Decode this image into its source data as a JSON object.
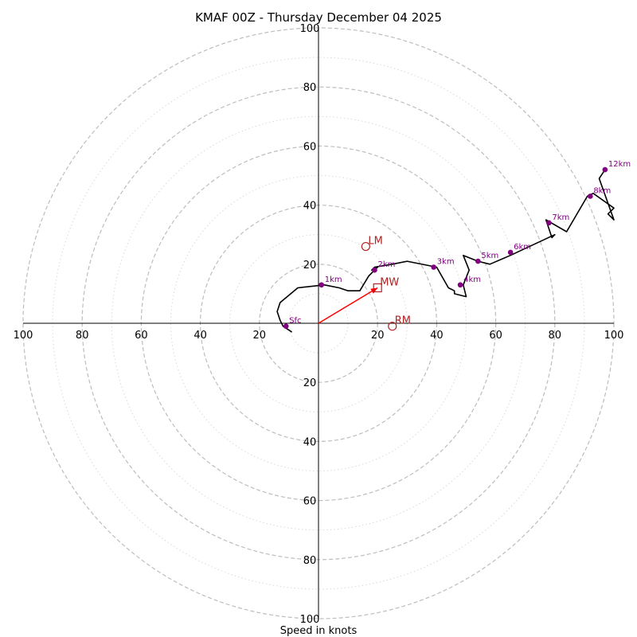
{
  "chart_data": {
    "type": "hodograph",
    "title": "KMAF 00Z - Thursday December 04 2025",
    "xlabel": "Speed in knots",
    "rings_major": [
      20,
      40,
      60,
      80,
      100
    ],
    "rings_minor": [
      10,
      30,
      50,
      70,
      90
    ],
    "axis_max": 100,
    "tick_labels": [
      "20",
      "40",
      "60",
      "80",
      "100"
    ],
    "trace": [
      [
        -9,
        -3
      ],
      [
        -12,
        -1
      ],
      [
        -13,
        1
      ],
      [
        -14,
        4
      ],
      [
        -13,
        7
      ],
      [
        -7,
        12
      ],
      [
        2,
        13
      ],
      [
        7,
        12
      ],
      [
        10,
        11
      ],
      [
        14,
        11
      ],
      [
        17,
        16
      ],
      [
        20,
        19
      ],
      [
        18,
        18
      ],
      [
        19,
        19
      ],
      [
        25,
        20
      ],
      [
        30,
        21
      ],
      [
        40,
        19
      ],
      [
        44,
        12
      ],
      [
        46,
        11
      ],
      [
        46,
        10
      ],
      [
        50,
        9
      ],
      [
        49,
        13
      ],
      [
        51,
        18
      ],
      [
        49,
        23
      ],
      [
        54,
        21
      ],
      [
        58,
        20
      ],
      [
        65,
        23
      ],
      [
        80,
        30
      ],
      [
        79,
        29
      ],
      [
        77,
        35
      ],
      [
        84,
        31
      ],
      [
        91,
        43
      ],
      [
        93,
        44
      ],
      [
        100,
        39
      ],
      [
        98,
        37
      ],
      [
        100,
        35
      ],
      [
        95,
        49
      ],
      [
        97,
        52
      ]
    ],
    "height_markers": [
      {
        "label": "Sfc",
        "u": -11,
        "v": -1
      },
      {
        "label": "1km",
        "u": 1,
        "v": 13
      },
      {
        "label": "2km",
        "u": 19,
        "v": 18
      },
      {
        "label": "3km",
        "u": 39,
        "v": 19
      },
      {
        "label": "4km",
        "u": 48,
        "v": 13
      },
      {
        "label": "5km",
        "u": 54,
        "v": 21
      },
      {
        "label": "6km",
        "u": 65,
        "v": 24
      },
      {
        "label": "7km",
        "u": 78,
        "v": 34
      },
      {
        "label": "8km",
        "u": 92,
        "v": 43
      },
      {
        "label": "12km",
        "u": 97,
        "v": 52
      }
    ],
    "motion_markers": [
      {
        "label": "LM",
        "u": 16,
        "v": 26,
        "shape": "circle"
      },
      {
        "label": "MW",
        "u": 20,
        "v": 12,
        "shape": "square"
      },
      {
        "label": "RM",
        "u": 25,
        "v": -1,
        "shape": "circle"
      }
    ],
    "shear_vector": {
      "u": 20,
      "v": 12
    },
    "colors": {
      "trace": "#000000",
      "height_marker": "#800080",
      "motion_marker": "#b22222",
      "shear_arrow": "#ff0000",
      "ring_major": "#bdbdbd",
      "ring_minor": "#d9d9d9"
    }
  }
}
